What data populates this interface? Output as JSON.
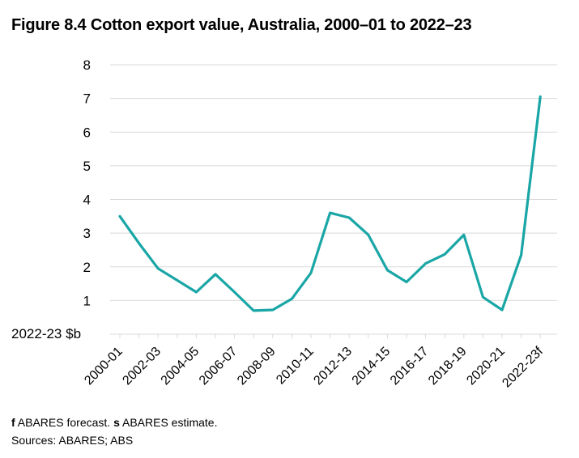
{
  "chart_data": {
    "type": "line",
    "title": "Figure 8.4 Cotton export value, Australia, 2000–01 to 2022–23",
    "ylabel": "2022-23 $b",
    "xlabel": "",
    "ylim": [
      0,
      8
    ],
    "yticks": [
      1,
      2,
      3,
      4,
      5,
      6,
      7,
      8
    ],
    "grid": "horizontal",
    "categories": [
      "2000-01",
      "2001-02",
      "2002-03",
      "2003-04",
      "2004-05",
      "2005-06",
      "2006-07",
      "2007-08",
      "2008-09",
      "2009-10",
      "2010-11",
      "2011-12",
      "2012-13",
      "2013-14",
      "2014-15",
      "2015-16",
      "2016-17",
      "2017-18",
      "2018-19",
      "2019-20",
      "2020-21",
      "2021-22",
      "2022-23f"
    ],
    "tick_labels": [
      "2000-01",
      "2002-03",
      "2004-05",
      "2006-07",
      "2008-09",
      "2010-11",
      "2012-13",
      "2014-15",
      "2016-17",
      "2018-19",
      "2020-21",
      "2022-23f"
    ],
    "series": [
      {
        "color": "#1aa6a6",
        "values": [
          3.5,
          2.7,
          1.95,
          1.6,
          1.25,
          1.78,
          1.25,
          0.7,
          0.72,
          1.05,
          1.82,
          3.6,
          3.46,
          2.95,
          1.9,
          1.55,
          2.1,
          2.37,
          2.95,
          1.1,
          0.72,
          2.35,
          7.05
        ]
      }
    ]
  },
  "footnotes": {
    "forecast_marker": "f",
    "forecast_text": " ABARES forecast. ",
    "estimate_marker": "s",
    "estimate_text": " ABARES estimate.",
    "sources": "Sources: ABARES; ABS"
  },
  "colors": {
    "line": "#1aa6a6",
    "grid": "#d9d9d9",
    "text": "#000000"
  }
}
